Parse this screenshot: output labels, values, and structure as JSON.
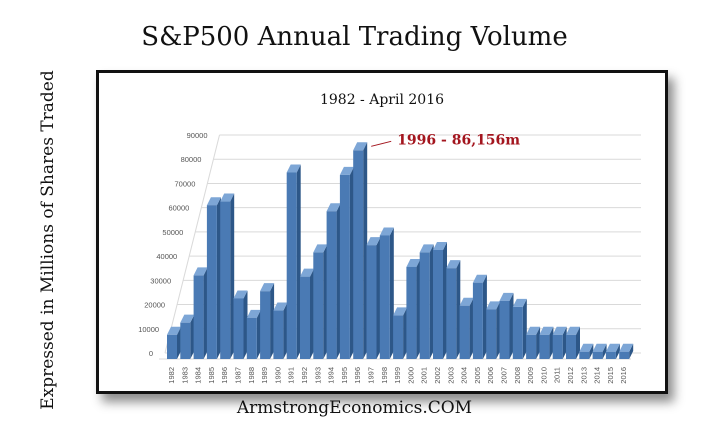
{
  "title": "S&P500 Annual Trading Volume",
  "ylabel_outer": "Expressed in Millions of Shares Traded",
  "footer": "ArmstrongEconomics.COM",
  "chart_data": {
    "type": "bar",
    "title": "1982 - April 2016",
    "annotation": "1996 - 86,156m",
    "annotation_color": "#a3151e",
    "bar_color": "#4a7ab4",
    "grid": true,
    "ylim": [
      0,
      90000
    ],
    "yticks": [
      "0",
      "10000",
      "20000",
      "30000",
      "40000",
      "50000",
      "60000",
      "70000",
      "80000",
      "90000"
    ],
    "categories": [
      "1982",
      "1983",
      "1984",
      "1985",
      "1986",
      "1987",
      "1988",
      "1989",
      "1990",
      "1991",
      "1992",
      "1993",
      "1994",
      "1995",
      "1996",
      "1997",
      "1998",
      "1999",
      "2000",
      "2001",
      "2002",
      "2003",
      "2004",
      "2005",
      "2006",
      "2007",
      "2008",
      "2009",
      "2010",
      "2011",
      "2012",
      "2013",
      "2014",
      "2015",
      "2016"
    ],
    "values": [
      10000,
      15000,
      34500,
      63500,
      65000,
      25000,
      17000,
      28000,
      20000,
      77000,
      34000,
      44000,
      61000,
      76000,
      86156,
      47000,
      51000,
      18000,
      38000,
      44000,
      45000,
      37500,
      22000,
      31500,
      20500,
      24000,
      21500,
      10000,
      10000,
      10000,
      10000,
      3000,
      3000,
      3000,
      3000
    ]
  }
}
